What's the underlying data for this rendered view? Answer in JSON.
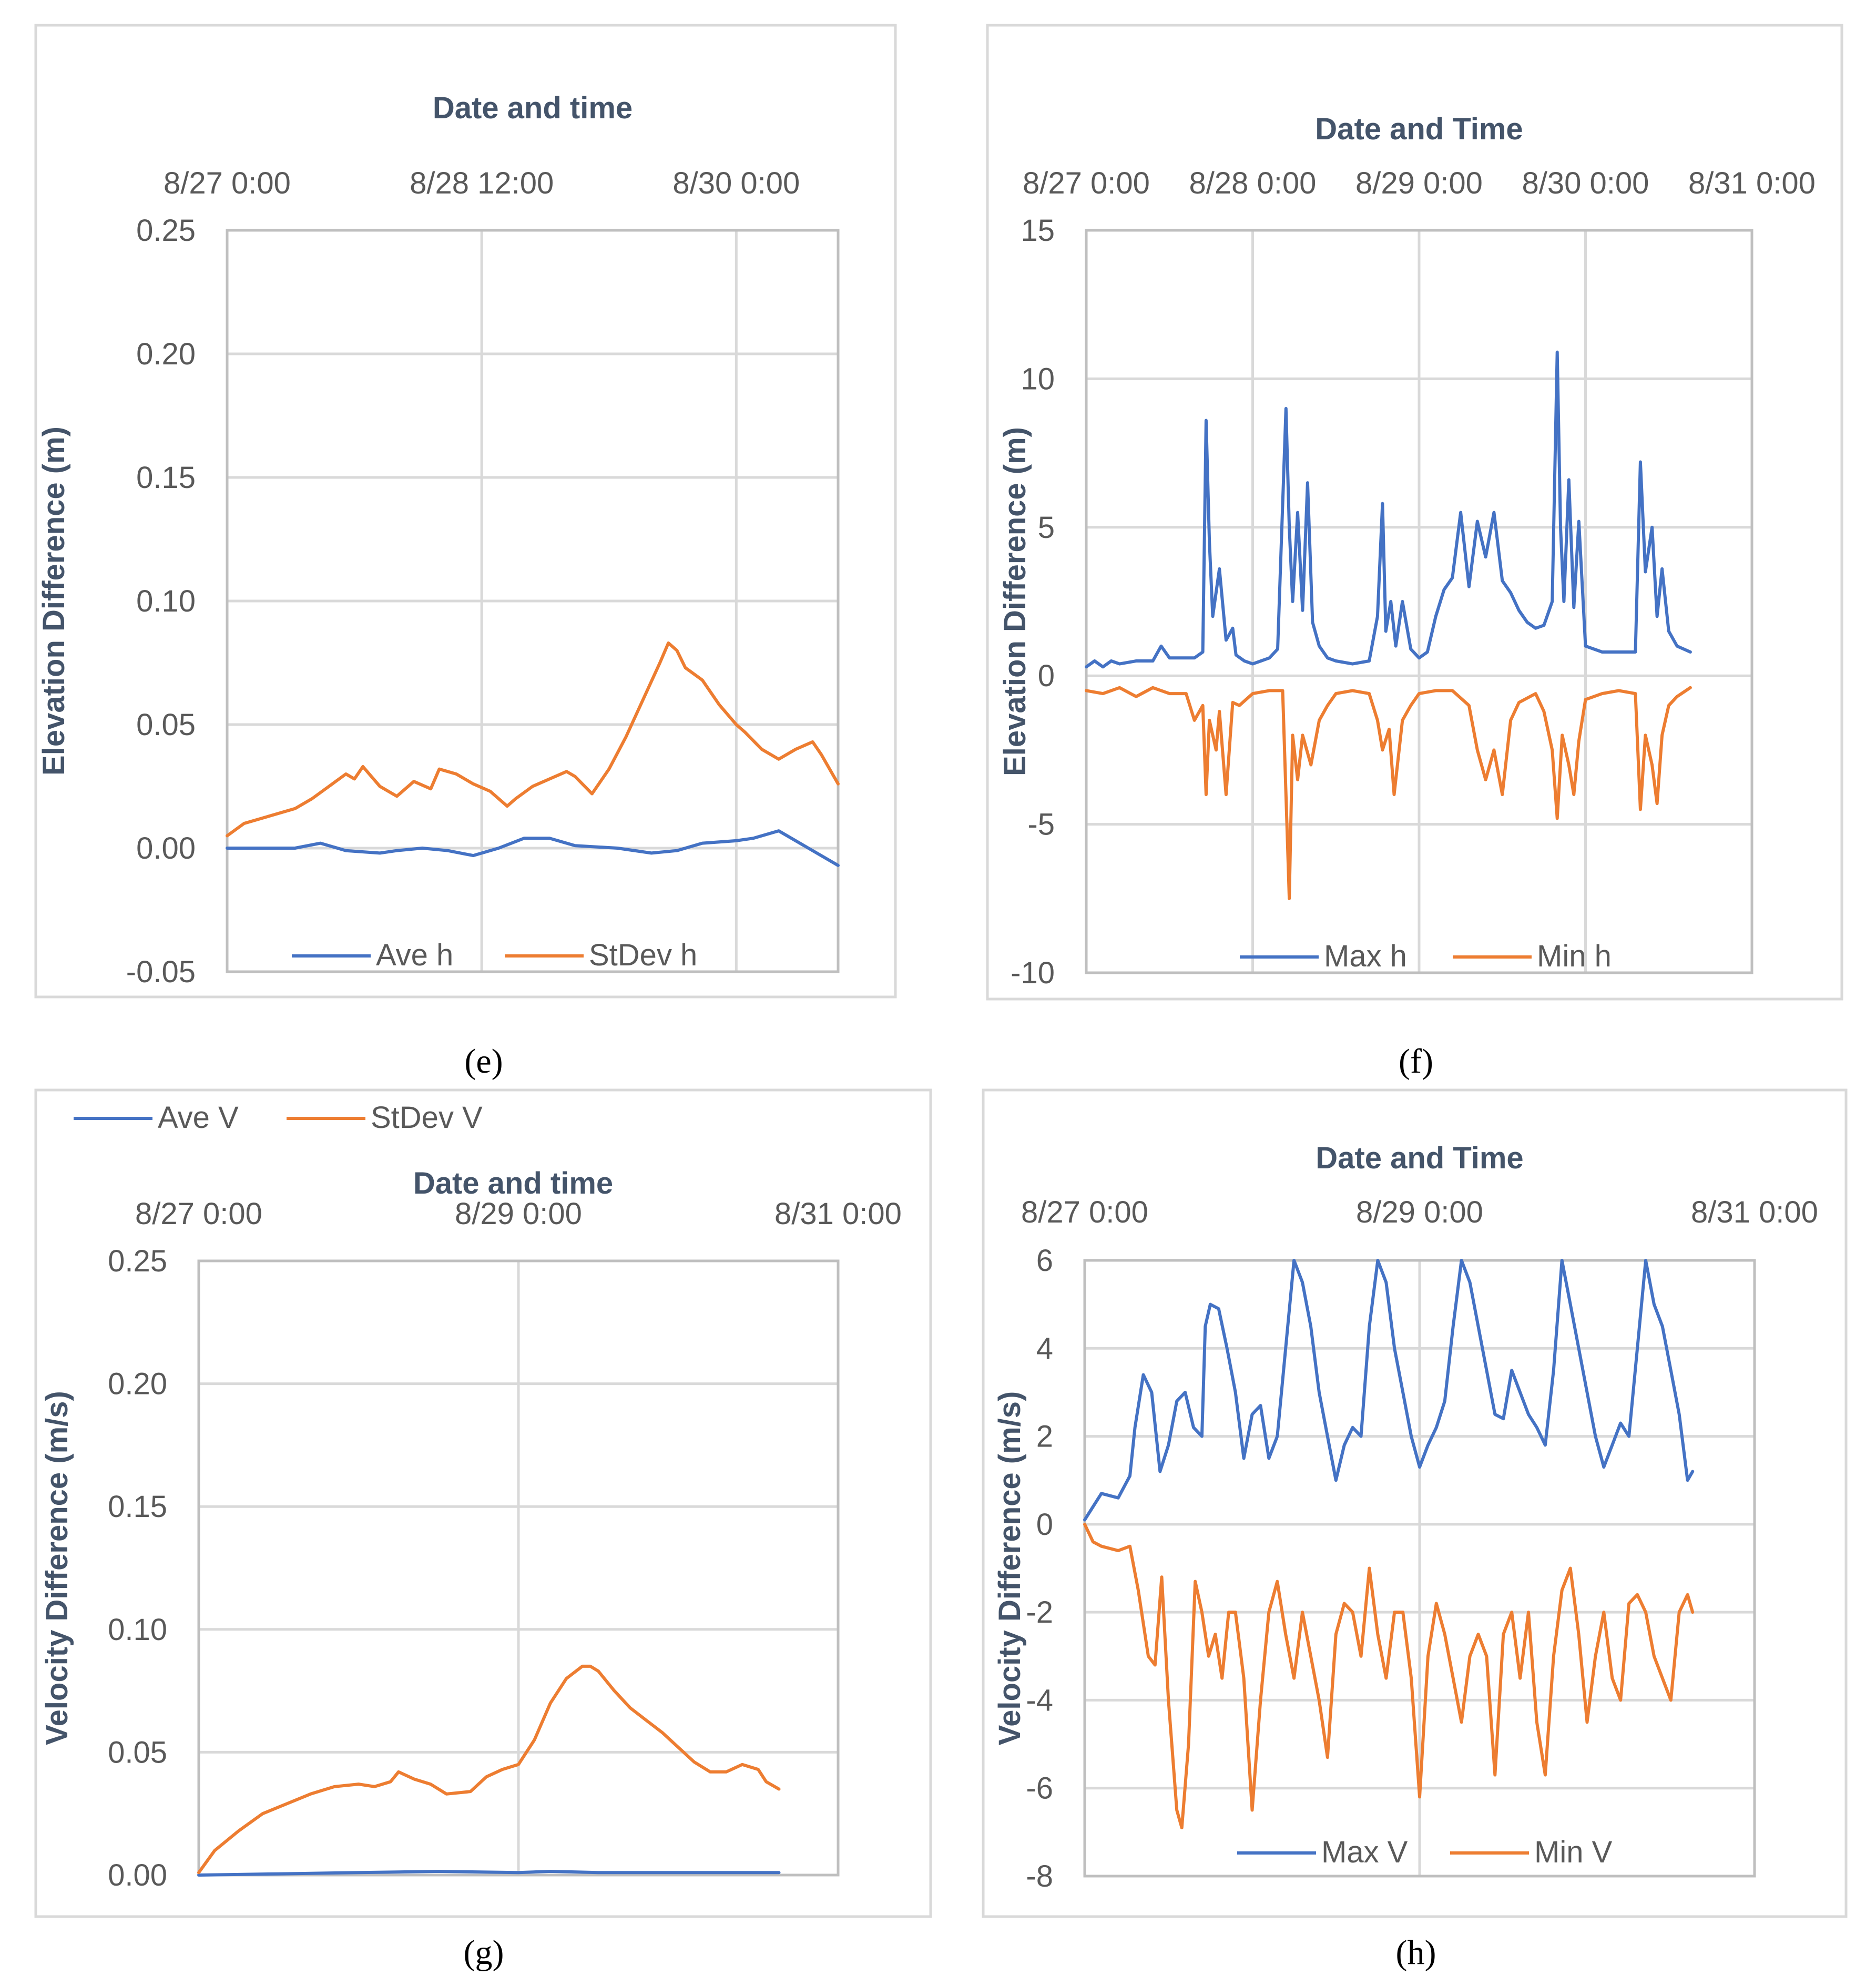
{
  "colors": {
    "blue": "#4472c4",
    "orange": "#ed7d31",
    "grid": "#d9d9d9",
    "axis_text": "#595959",
    "title_text": "#44546a"
  },
  "chart_data": [
    {
      "panel": "e",
      "caption": "(e)",
      "type": "line",
      "title": "Date and time",
      "ylabel": "Elevation Difference (m)",
      "xlim": [
        0,
        3.6
      ],
      "ylim": [
        -0.05,
        0.25
      ],
      "x_ticks": [
        0,
        1.5,
        3.0
      ],
      "x_tick_labels": [
        "8/27 0:00",
        "8/28 12:00",
        "8/30 0:00"
      ],
      "y_ticks": [
        -0.05,
        0.0,
        0.05,
        0.1,
        0.15,
        0.2,
        0.25
      ],
      "y_tick_labels": [
        "-0.05",
        "0.00",
        "0.05",
        "0.10",
        "0.15",
        "0.20",
        "0.25"
      ],
      "legend": "bottom",
      "series": [
        {
          "name": "Ave h",
          "color": "#4472c4",
          "x": [
            0,
            0.2,
            0.4,
            0.55,
            0.7,
            0.9,
            1.0,
            1.15,
            1.3,
            1.45,
            1.6,
            1.75,
            1.9,
            2.05,
            2.3,
            2.5,
            2.65,
            2.8,
            3.0,
            3.1,
            3.25,
            3.4,
            3.6
          ],
          "y": [
            0.0,
            0.0,
            0.0,
            0.002,
            -0.001,
            -0.002,
            -0.001,
            0.0,
            -0.001,
            -0.003,
            0.0,
            0.004,
            0.004,
            0.001,
            0.0,
            -0.002,
            -0.001,
            0.002,
            0.003,
            0.004,
            0.007,
            0.001,
            -0.007
          ]
        },
        {
          "name": "StDev h",
          "color": "#ed7d31",
          "x": [
            0,
            0.1,
            0.25,
            0.4,
            0.5,
            0.6,
            0.7,
            0.75,
            0.8,
            0.9,
            1.0,
            1.1,
            1.2,
            1.25,
            1.35,
            1.45,
            1.55,
            1.65,
            1.7,
            1.8,
            1.9,
            2.0,
            2.05,
            2.15,
            2.25,
            2.35,
            2.45,
            2.55,
            2.6,
            2.65,
            2.7,
            2.8,
            2.9,
            3.0,
            3.05,
            3.15,
            3.25,
            3.35,
            3.45,
            3.5,
            3.6
          ],
          "y": [
            0.005,
            0.01,
            0.013,
            0.016,
            0.02,
            0.025,
            0.03,
            0.028,
            0.033,
            0.025,
            0.021,
            0.027,
            0.024,
            0.032,
            0.03,
            0.026,
            0.023,
            0.017,
            0.02,
            0.025,
            0.028,
            0.031,
            0.029,
            0.022,
            0.032,
            0.045,
            0.06,
            0.075,
            0.083,
            0.08,
            0.073,
            0.068,
            0.058,
            0.05,
            0.047,
            0.04,
            0.036,
            0.04,
            0.043,
            0.038,
            0.026
          ]
        }
      ]
    },
    {
      "panel": "f",
      "caption": "(f)",
      "type": "line",
      "title": "Date and Time",
      "ylabel": "Elevation Difference (m)",
      "xlim": [
        0,
        4
      ],
      "ylim": [
        -10,
        15
      ],
      "x_ticks": [
        0,
        1,
        2,
        3,
        4
      ],
      "x_tick_labels": [
        "8/27 0:00",
        "8/28 0:00",
        "8/29 0:00",
        "8/30 0:00",
        "8/31 0:00"
      ],
      "y_ticks": [
        -10,
        -5,
        0,
        5,
        10,
        15
      ],
      "y_tick_labels": [
        "-10",
        "-5",
        "0",
        "5",
        "10",
        "15"
      ],
      "legend": "bottom",
      "series": [
        {
          "name": "Max h",
          "color": "#4472c4",
          "x": [
            0,
            0.05,
            0.1,
            0.15,
            0.2,
            0.3,
            0.4,
            0.45,
            0.5,
            0.6,
            0.65,
            0.7,
            0.72,
            0.74,
            0.76,
            0.8,
            0.84,
            0.88,
            0.9,
            0.95,
            1.0,
            1.05,
            1.1,
            1.15,
            1.2,
            1.22,
            1.24,
            1.27,
            1.3,
            1.33,
            1.36,
            1.4,
            1.45,
            1.5,
            1.6,
            1.7,
            1.75,
            1.78,
            1.8,
            1.83,
            1.86,
            1.9,
            1.95,
            2.0,
            2.05,
            2.1,
            2.15,
            2.2,
            2.25,
            2.3,
            2.35,
            2.4,
            2.45,
            2.5,
            2.55,
            2.6,
            2.65,
            2.7,
            2.75,
            2.8,
            2.83,
            2.85,
            2.87,
            2.9,
            2.93,
            2.96,
            3.0,
            3.1,
            3.2,
            3.3,
            3.33,
            3.36,
            3.4,
            3.43,
            3.46,
            3.5,
            3.55,
            3.63
          ],
          "y": [
            0.3,
            0.5,
            0.3,
            0.5,
            0.4,
            0.5,
            0.5,
            1.0,
            0.6,
            0.6,
            0.6,
            0.8,
            8.6,
            4.5,
            2.0,
            3.6,
            1.2,
            1.6,
            0.7,
            0.5,
            0.4,
            0.5,
            0.6,
            0.9,
            9.0,
            5.0,
            2.5,
            5.5,
            2.2,
            6.5,
            1.8,
            1.0,
            0.6,
            0.5,
            0.4,
            0.5,
            2.0,
            5.8,
            1.5,
            2.5,
            1.0,
            2.5,
            0.9,
            0.6,
            0.8,
            2.0,
            2.9,
            3.3,
            5.5,
            3.0,
            5.2,
            4.0,
            5.5,
            3.2,
            2.8,
            2.2,
            1.8,
            1.6,
            1.7,
            2.5,
            10.9,
            5.0,
            2.5,
            6.6,
            2.3,
            5.2,
            1.0,
            0.8,
            0.8,
            0.8,
            7.2,
            3.5,
            5.0,
            2.0,
            3.6,
            1.5,
            1.0,
            0.8
          ]
        },
        {
          "name": "Min h",
          "color": "#ed7d31",
          "x": [
            0,
            0.1,
            0.2,
            0.3,
            0.4,
            0.5,
            0.6,
            0.65,
            0.7,
            0.72,
            0.74,
            0.78,
            0.8,
            0.84,
            0.88,
            0.92,
            0.96,
            1.0,
            1.1,
            1.15,
            1.18,
            1.22,
            1.24,
            1.27,
            1.3,
            1.35,
            1.4,
            1.45,
            1.5,
            1.6,
            1.7,
            1.75,
            1.78,
            1.82,
            1.85,
            1.9,
            1.95,
            2.0,
            2.1,
            2.2,
            2.3,
            2.35,
            2.4,
            2.45,
            2.5,
            2.55,
            2.6,
            2.7,
            2.75,
            2.8,
            2.83,
            2.86,
            2.9,
            2.93,
            2.96,
            3.0,
            3.1,
            3.2,
            3.3,
            3.33,
            3.36,
            3.4,
            3.43,
            3.46,
            3.5,
            3.55,
            3.63
          ],
          "y": [
            -0.5,
            -0.6,
            -0.4,
            -0.7,
            -0.4,
            -0.6,
            -0.6,
            -1.5,
            -1.0,
            -4.0,
            -1.5,
            -2.5,
            -1.2,
            -4.0,
            -0.9,
            -1.0,
            -0.8,
            -0.6,
            -0.5,
            -0.5,
            -0.5,
            -7.5,
            -2.0,
            -3.5,
            -2.0,
            -3.0,
            -1.5,
            -1.0,
            -0.6,
            -0.5,
            -0.6,
            -1.5,
            -2.5,
            -1.8,
            -4.0,
            -1.5,
            -1.0,
            -0.6,
            -0.5,
            -0.5,
            -1.0,
            -2.5,
            -3.5,
            -2.5,
            -4.0,
            -1.5,
            -0.9,
            -0.6,
            -1.2,
            -2.5,
            -4.8,
            -2.0,
            -3.0,
            -4.0,
            -2.2,
            -0.8,
            -0.6,
            -0.5,
            -0.6,
            -4.5,
            -2.0,
            -3.0,
            -4.3,
            -2.0,
            -1.0,
            -0.7,
            -0.4
          ]
        }
      ]
    },
    {
      "panel": "g",
      "caption": "(g)",
      "type": "line",
      "title": "Date and time",
      "ylabel": "Velocity  Difference (m/s)",
      "xlim": [
        0,
        4
      ],
      "ylim": [
        0,
        0.25
      ],
      "x_ticks": [
        0,
        2,
        4
      ],
      "x_tick_labels": [
        "8/27 0:00",
        "8/29 0:00",
        "8/31 0:00"
      ],
      "y_ticks": [
        0,
        0.05,
        0.1,
        0.15,
        0.2,
        0.25
      ],
      "y_tick_labels": [
        "0.00",
        "0.05",
        "0.10",
        "0.15",
        "0.20",
        "0.25"
      ],
      "legend": "top-left",
      "series": [
        {
          "name": "Ave V",
          "color": "#4472c4",
          "x": [
            0,
            0.5,
            1.0,
            1.5,
            2.0,
            2.2,
            2.5,
            3.0,
            3.63
          ],
          "y": [
            0.0,
            0.0005,
            0.001,
            0.0015,
            0.001,
            0.0015,
            0.001,
            0.001,
            0.001
          ]
        },
        {
          "name": "StDev V",
          "color": "#ed7d31",
          "x": [
            0,
            0.1,
            0.25,
            0.4,
            0.55,
            0.7,
            0.85,
            1.0,
            1.1,
            1.2,
            1.25,
            1.35,
            1.45,
            1.55,
            1.7,
            1.8,
            1.9,
            2.0,
            2.1,
            2.2,
            2.3,
            2.4,
            2.45,
            2.5,
            2.6,
            2.7,
            2.8,
            2.9,
            3.0,
            3.1,
            3.2,
            3.3,
            3.4,
            3.5,
            3.55,
            3.63
          ],
          "y": [
            0.001,
            0.01,
            0.018,
            0.025,
            0.029,
            0.033,
            0.036,
            0.037,
            0.036,
            0.038,
            0.042,
            0.039,
            0.037,
            0.033,
            0.034,
            0.04,
            0.043,
            0.045,
            0.055,
            0.07,
            0.08,
            0.085,
            0.085,
            0.083,
            0.075,
            0.068,
            0.063,
            0.058,
            0.052,
            0.046,
            0.042,
            0.042,
            0.045,
            0.043,
            0.038,
            0.035
          ]
        }
      ]
    },
    {
      "panel": "h",
      "caption": "(h)",
      "type": "line",
      "title": "Date and Time",
      "ylabel": "Velocity  Difference (m/s)",
      "xlim": [
        0,
        4
      ],
      "ylim": [
        -8,
        6
      ],
      "x_ticks": [
        0,
        2,
        4
      ],
      "x_tick_labels": [
        "8/27 0:00",
        "8/29 0:00",
        "8/31 0:00"
      ],
      "y_ticks": [
        -8,
        -6,
        -4,
        -2,
        0,
        2,
        4,
        6
      ],
      "y_tick_labels": [
        "-8",
        "-6",
        "-4",
        "-2",
        "0",
        "2",
        "4",
        "6"
      ],
      "legend": "bottom",
      "series": [
        {
          "name": "Max V",
          "color": "#4472c4",
          "x": [
            0,
            0.05,
            0.1,
            0.2,
            0.27,
            0.3,
            0.35,
            0.4,
            0.45,
            0.5,
            0.55,
            0.6,
            0.65,
            0.7,
            0.72,
            0.75,
            0.8,
            0.85,
            0.9,
            0.95,
            1.0,
            1.05,
            1.1,
            1.15,
            1.2,
            1.25,
            1.3,
            1.35,
            1.4,
            1.45,
            1.5,
            1.55,
            1.6,
            1.65,
            1.7,
            1.75,
            1.8,
            1.85,
            1.9,
            1.95,
            2.0,
            2.05,
            2.1,
            2.15,
            2.2,
            2.25,
            2.3,
            2.35,
            2.4,
            2.45,
            2.5,
            2.55,
            2.6,
            2.65,
            2.7,
            2.75,
            2.8,
            2.85,
            2.9,
            2.95,
            3.0,
            3.05,
            3.1,
            3.15,
            3.2,
            3.25,
            3.3,
            3.35,
            3.4,
            3.45,
            3.5,
            3.55,
            3.6,
            3.63
          ],
          "y": [
            0.1,
            0.4,
            0.7,
            0.6,
            1.1,
            2.2,
            3.4,
            3.0,
            1.2,
            1.8,
            2.8,
            3.0,
            2.2,
            2.0,
            4.5,
            5.0,
            4.9,
            4.0,
            3.0,
            1.5,
            2.5,
            2.7,
            1.5,
            2.0,
            4.0,
            6.0,
            5.5,
            4.5,
            3.0,
            2.0,
            1.0,
            1.8,
            2.2,
            2.0,
            4.5,
            6.0,
            5.5,
            4.0,
            3.0,
            2.0,
            1.3,
            1.8,
            2.2,
            2.8,
            4.5,
            6.0,
            5.5,
            4.5,
            3.5,
            2.5,
            2.4,
            3.5,
            3.0,
            2.5,
            2.2,
            1.8,
            3.5,
            6.0,
            5.0,
            4.0,
            3.0,
            2.0,
            1.3,
            1.8,
            2.3,
            2.0,
            4.0,
            6.0,
            5.0,
            4.5,
            3.5,
            2.5,
            1.0,
            1.2
          ]
        },
        {
          "name": "Min V",
          "color": "#ed7d31",
          "x": [
            0,
            0.05,
            0.1,
            0.2,
            0.27,
            0.32,
            0.38,
            0.42,
            0.46,
            0.5,
            0.55,
            0.58,
            0.62,
            0.66,
            0.7,
            0.74,
            0.78,
            0.82,
            0.86,
            0.9,
            0.95,
            1.0,
            1.05,
            1.1,
            1.15,
            1.2,
            1.25,
            1.3,
            1.35,
            1.4,
            1.45,
            1.5,
            1.55,
            1.6,
            1.65,
            1.7,
            1.75,
            1.8,
            1.85,
            1.9,
            1.95,
            2.0,
            2.05,
            2.1,
            2.15,
            2.2,
            2.25,
            2.3,
            2.35,
            2.4,
            2.45,
            2.5,
            2.55,
            2.6,
            2.65,
            2.7,
            2.75,
            2.8,
            2.85,
            2.9,
            2.95,
            3.0,
            3.05,
            3.1,
            3.15,
            3.2,
            3.25,
            3.3,
            3.35,
            3.4,
            3.45,
            3.5,
            3.55,
            3.6,
            3.63
          ],
          "y": [
            0,
            -0.4,
            -0.5,
            -0.6,
            -0.5,
            -1.5,
            -3.0,
            -3.2,
            -1.2,
            -4.0,
            -6.5,
            -6.9,
            -5.0,
            -1.3,
            -2.0,
            -3.0,
            -2.5,
            -3.5,
            -2.0,
            -2.0,
            -3.5,
            -6.5,
            -4.0,
            -2.0,
            -1.3,
            -2.5,
            -3.5,
            -2.0,
            -3.0,
            -4.0,
            -5.3,
            -2.5,
            -1.8,
            -2.0,
            -3.0,
            -1.0,
            -2.5,
            -3.5,
            -2.0,
            -2.0,
            -3.5,
            -6.2,
            -3.0,
            -1.8,
            -2.5,
            -3.5,
            -4.5,
            -3.0,
            -2.5,
            -3.0,
            -5.7,
            -2.5,
            -2.0,
            -3.5,
            -2.0,
            -4.5,
            -5.7,
            -3.0,
            -1.5,
            -1.0,
            -2.5,
            -4.5,
            -3.0,
            -2.0,
            -3.5,
            -4.0,
            -1.8,
            -1.6,
            -2.0,
            -3.0,
            -3.5,
            -4.0,
            -2.0,
            -1.6,
            -2.0
          ]
        }
      ]
    }
  ]
}
